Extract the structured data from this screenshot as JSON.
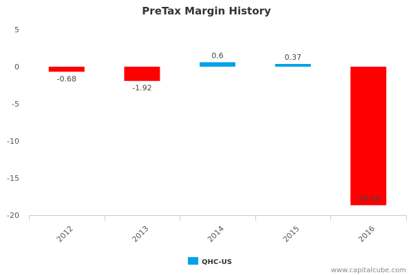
{
  "chart_data": {
    "type": "bar",
    "title": "PreTax Margin History",
    "categories": [
      "2012",
      "2013",
      "2014",
      "2015",
      "2016"
    ],
    "series": [
      {
        "name": "QHC-US",
        "values": [
          -0.68,
          -1.92,
          0.6,
          0.37,
          -18.66
        ]
      }
    ],
    "data_labels": [
      "-0.68",
      "-1.92",
      "0.6",
      "0.37",
      "-18.66"
    ],
    "y_ticks": [
      "5",
      "0",
      "-5",
      "-10",
      "-15",
      "-20"
    ],
    "ylim": [
      -20,
      5
    ],
    "xlabel": "",
    "ylabel": "",
    "legend": {
      "label": "QHC-US",
      "position": "bottom-center"
    },
    "colors": {
      "positive": "#00a2e8",
      "negative": "#ff0000",
      "axis": "#cccccc"
    },
    "watermark": "www.capitalcube.com"
  }
}
